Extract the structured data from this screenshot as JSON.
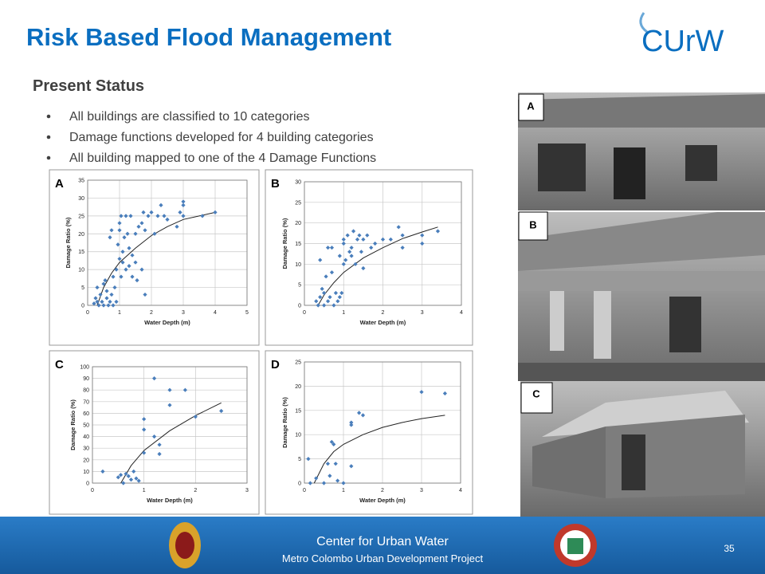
{
  "header": {
    "title": "Risk Based Flood Management",
    "logo": "CUrW"
  },
  "subtitle": "Present Status",
  "bullets": [
    "All buildings are classified to 10 categories",
    "Damage functions developed for 4 building categories",
    "All building mapped to one of the 4 Damage Functions"
  ],
  "photos": [
    "A",
    "B",
    "C"
  ],
  "footer": {
    "title": "Center for Urban Water",
    "subtitle": "Metro Colombo Urban Development Project",
    "page": "35"
  },
  "chart_data": [
    {
      "type": "scatter",
      "label": "A",
      "xlabel": "Water Depth (m)",
      "ylabel": "Damage Ratio (%)",
      "color": "#4a7ebb",
      "grid": true,
      "x": [
        0.2,
        0.25,
        0.3,
        0.3,
        0.35,
        0.4,
        0.45,
        0.5,
        0.5,
        0.55,
        0.6,
        0.6,
        0.65,
        0.7,
        0.7,
        0.75,
        0.75,
        0.8,
        0.8,
        0.85,
        0.9,
        0.9,
        0.95,
        1.0,
        1.0,
        1.0,
        1.05,
        1.05,
        1.1,
        1.1,
        1.15,
        1.2,
        1.2,
        1.25,
        1.3,
        1.3,
        1.35,
        1.4,
        1.4,
        1.5,
        1.5,
        1.55,
        1.6,
        1.7,
        1.7,
        1.75,
        1.8,
        1.8,
        1.9,
        2.0,
        2.1,
        2.2,
        2.3,
        2.4,
        2.5,
        2.8,
        2.9,
        3.0,
        3.0,
        3.0,
        3.6,
        4.0
      ],
      "y": [
        0.5,
        2,
        1,
        5,
        0,
        3,
        1,
        6,
        0,
        7,
        2,
        4,
        0,
        1,
        19,
        21,
        3,
        8,
        0,
        5,
        10,
        1,
        17,
        13,
        21,
        23,
        25,
        8,
        15,
        12,
        19,
        25,
        10,
        20,
        16,
        11,
        25,
        8,
        14,
        20,
        12,
        7,
        22,
        23,
        10,
        26,
        3,
        21,
        25,
        26,
        20,
        25,
        28,
        25,
        24,
        22,
        26,
        28,
        29,
        25,
        25,
        26
      ],
      "curve": {
        "x": [
          0.3,
          0.5,
          0.75,
          1,
          1.5,
          2,
          2.5,
          3,
          3.5,
          4
        ],
        "y": [
          0,
          5,
          9,
          12,
          16,
          19.5,
          22,
          24,
          25,
          26
        ]
      },
      "xlim": [
        0,
        5
      ],
      "xticks": [
        0,
        1,
        2,
        3,
        4,
        5
      ],
      "ylim": [
        0,
        35
      ],
      "yticks": [
        0,
        5,
        10,
        15,
        20,
        25,
        30,
        35
      ]
    },
    {
      "type": "scatter",
      "label": "B",
      "xlabel": "Water Depth (m)",
      "ylabel": "Damage Ratio (%)",
      "color": "#4a7ebb",
      "grid": true,
      "x": [
        0.3,
        0.35,
        0.4,
        0.4,
        0.45,
        0.5,
        0.5,
        0.55,
        0.6,
        0.6,
        0.65,
        0.7,
        0.7,
        0.75,
        0.8,
        0.85,
        0.9,
        0.9,
        0.95,
        1.0,
        1.0,
        1.0,
        1.05,
        1.1,
        1.15,
        1.2,
        1.2,
        1.25,
        1.3,
        1.35,
        1.4,
        1.45,
        1.5,
        1.5,
        1.6,
        1.7,
        1.8,
        2.0,
        2.2,
        2.4,
        2.5,
        2.5,
        3.0,
        3.0,
        3.4
      ],
      "y": [
        1,
        0,
        2,
        11,
        4,
        0,
        3,
        7,
        14,
        1,
        2,
        8,
        14,
        0,
        3,
        1,
        2,
        12,
        3,
        10,
        15,
        16,
        11,
        17,
        13,
        12,
        14,
        18,
        10,
        16,
        17,
        13,
        16,
        9,
        17,
        14,
        15,
        16,
        16,
        19,
        14,
        17,
        15,
        17,
        18
      ],
      "curve": {
        "x": [
          0.35,
          0.5,
          0.75,
          1,
          1.5,
          2,
          2.5,
          3,
          3.4
        ],
        "y": [
          0,
          2.5,
          5.5,
          8,
          11.5,
          14,
          16.2,
          17.8,
          19
        ]
      },
      "xlim": [
        0,
        4
      ],
      "xticks": [
        0,
        1,
        2,
        3,
        4
      ],
      "ylim": [
        0,
        30
      ],
      "yticks": [
        0,
        5,
        10,
        15,
        20,
        25,
        30
      ]
    },
    {
      "type": "scatter",
      "label": "C",
      "xlabel": "Water Depth (m)",
      "ylabel": "Damage Ratio (%)",
      "color": "#4a7ebb",
      "grid": true,
      "x": [
        0.2,
        0.5,
        0.55,
        0.6,
        0.65,
        0.7,
        0.75,
        0.8,
        0.85,
        0.9,
        1.0,
        1.0,
        1.0,
        1.2,
        1.2,
        1.3,
        1.3,
        1.5,
        1.5,
        1.8,
        2.0,
        2.5
      ],
      "y": [
        10,
        5,
        7,
        0,
        8,
        6,
        3,
        10,
        4,
        2,
        26,
        55,
        46,
        40,
        90,
        33,
        25,
        67,
        80,
        80,
        57,
        62
      ],
      "curve": {
        "x": [
          0.55,
          0.75,
          1,
          1.5,
          2,
          2.5
        ],
        "y": [
          0,
          15,
          28,
          45,
          58,
          69
        ]
      },
      "xlim": [
        0,
        3
      ],
      "xticks": [
        0,
        1,
        2,
        3
      ],
      "ylim": [
        0,
        100
      ],
      "yticks": [
        0,
        10,
        20,
        30,
        40,
        50,
        60,
        70,
        80,
        90,
        100
      ]
    },
    {
      "type": "scatter",
      "label": "D",
      "xlabel": "Water Depth (m)",
      "ylabel": "Damage Ratio (%)",
      "color": "#4a7ebb",
      "grid": true,
      "x": [
        0.1,
        0.15,
        0.3,
        0.5,
        0.6,
        0.65,
        0.7,
        0.75,
        0.8,
        0.85,
        1.0,
        1.2,
        1.2,
        1.2,
        1.4,
        1.5,
        3.0,
        3.6
      ],
      "y": [
        5,
        0,
        1,
        0,
        4,
        1.5,
        8.5,
        8,
        4,
        0.5,
        0,
        12,
        12.5,
        3.5,
        14.5,
        14,
        18.8,
        18.5
      ],
      "curve": {
        "x": [
          0.25,
          0.5,
          0.75,
          1,
          1.5,
          2,
          2.5,
          3,
          3.6
        ],
        "y": [
          0,
          4,
          6.5,
          8,
          10,
          11.5,
          12.5,
          13.3,
          14
        ]
      },
      "xlim": [
        0,
        4
      ],
      "xticks": [
        0,
        1,
        2,
        3,
        4
      ],
      "ylim": [
        0,
        25
      ],
      "yticks": [
        0,
        5,
        10,
        15,
        20,
        25
      ]
    }
  ]
}
